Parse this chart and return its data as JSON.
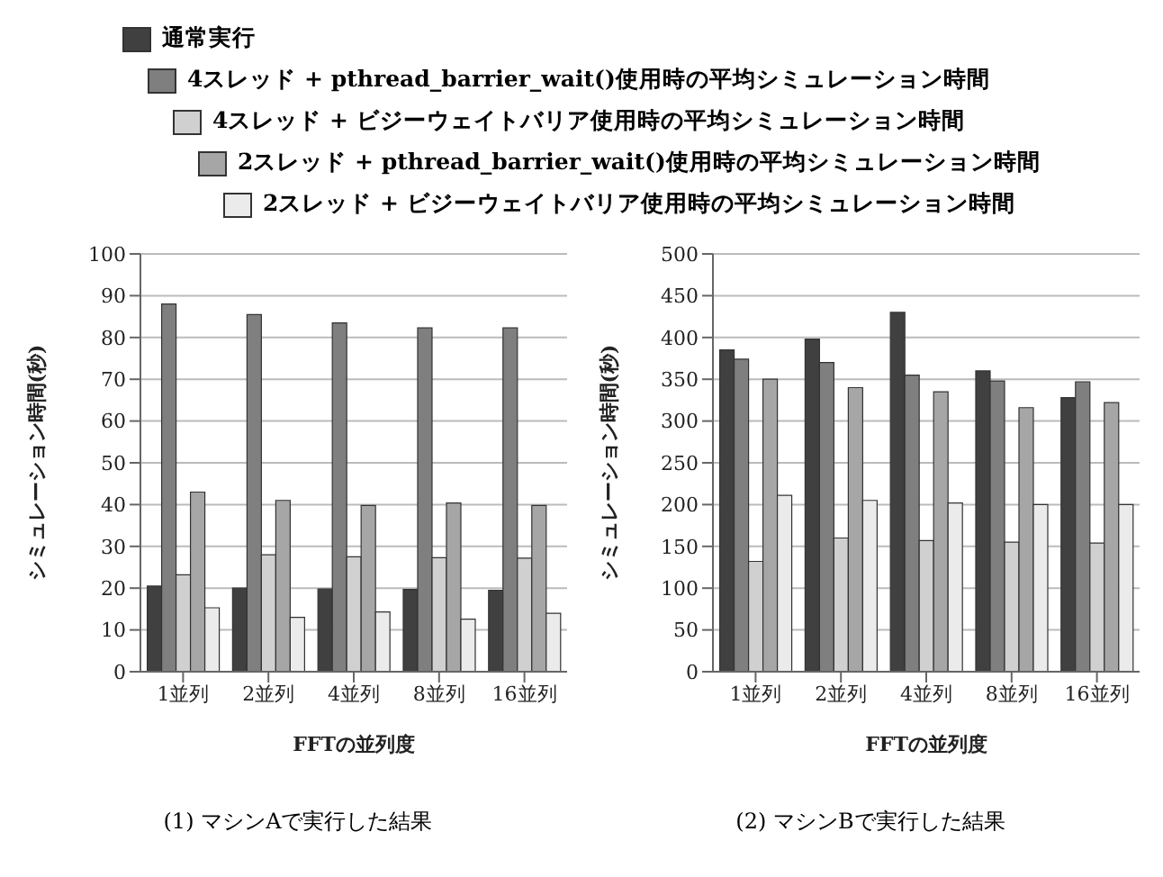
{
  "chart_data": [
    {
      "type": "bar",
      "title": "(1) マシンAで実行した結果",
      "xlabel": "FFTの並列度",
      "ylabel": "シミュレーション時間(秒)",
      "categories": [
        "1並列",
        "2並列",
        "4並列",
        "8並列",
        "16並列"
      ],
      "ylim": [
        0,
        100
      ],
      "yticks": [
        0,
        10,
        20,
        30,
        40,
        50,
        60,
        70,
        80,
        90,
        100
      ],
      "grid": "y",
      "legend": "top",
      "series": [
        {
          "name": "通常実行",
          "color": "#404040",
          "values": [
            20.5,
            20,
            19.8,
            19.7,
            19.5
          ]
        },
        {
          "name": "4スレッド + pthread_barrier_wait()使用時の平均シミュレーション時間",
          "color": "#7f7f7f",
          "values": [
            88,
            85.5,
            83.5,
            82.3,
            82.3
          ]
        },
        {
          "name": "4スレッド + ビジーウェイトバリア使用時の平均シミュレーション時間",
          "color": "#d0d0d0",
          "values": [
            23.2,
            28,
            27.5,
            27.3,
            27.2
          ]
        },
        {
          "name": "2スレッド + pthread_barrier_wait()使用時の平均シミュレーション時間",
          "color": "#a6a6a6",
          "values": [
            43,
            41,
            39.8,
            40.4,
            39.8
          ]
        },
        {
          "name": "2スレッド + ビジーウェイトバリア使用時の平均シミュレーション時間",
          "color": "#ebebeb",
          "values": [
            15.3,
            13,
            14.3,
            12.6,
            14
          ]
        }
      ]
    },
    {
      "type": "bar",
      "title": "(2) マシンBで実行した結果",
      "xlabel": "FFTの並列度",
      "ylabel": "シミュレーション時間(秒)",
      "categories": [
        "1並列",
        "2並列",
        "4並列",
        "8並列",
        "16並列"
      ],
      "ylim": [
        0,
        500
      ],
      "yticks": [
        0,
        50,
        100,
        150,
        200,
        250,
        300,
        350,
        400,
        450,
        500
      ],
      "grid": "y",
      "series": [
        {
          "color": "#404040",
          "values": [
            385,
            398,
            430,
            360,
            328
          ]
        },
        {
          "color": "#7f7f7f",
          "values": [
            374,
            370,
            355,
            348,
            347
          ]
        },
        {
          "color": "#d0d0d0",
          "values": [
            132,
            160,
            157,
            155,
            154
          ]
        },
        {
          "color": "#a6a6a6",
          "values": [
            350,
            340,
            335,
            316,
            322
          ]
        },
        {
          "color": "#ebebeb",
          "values": [
            211,
            205,
            202,
            200,
            200
          ]
        }
      ]
    }
  ]
}
